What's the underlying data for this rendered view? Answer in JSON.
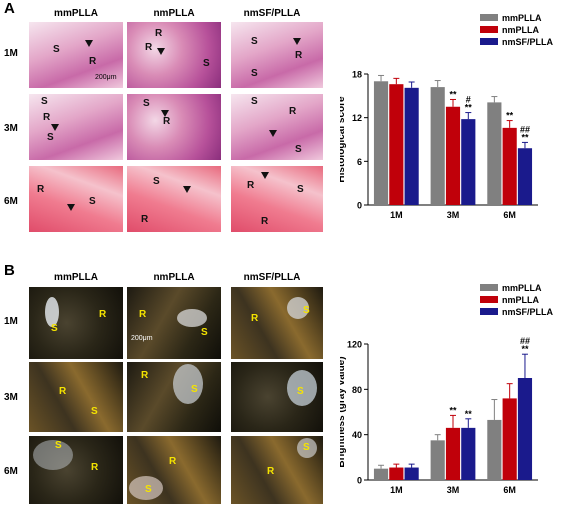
{
  "panels": {
    "a": {
      "letter": "A",
      "columns": [
        "mmPLLA",
        "nmPLLA",
        "nmSF/PLLA"
      ],
      "rows": [
        "1M",
        "3M",
        "6M"
      ],
      "scale_bar": "200μm"
    },
    "b": {
      "letter": "B",
      "columns": [
        "mmPLLA",
        "nmPLLA",
        "nmSF/PLLA"
      ],
      "rows": [
        "1M",
        "3M",
        "6M"
      ],
      "scale_bar": "200μm"
    }
  },
  "markers": {
    "s": "S",
    "r": "R"
  },
  "colors": {
    "mmPLLA": "#808080",
    "nmPLLA": "#c0000a",
    "nmSF/PLLA": "#1a1a8c"
  },
  "chart_data": [
    {
      "type": "bar",
      "categories": [
        "1M",
        "3M",
        "6M"
      ],
      "series": [
        {
          "name": "mmPLLA",
          "values": [
            17,
            16.2,
            14.1
          ],
          "errors": [
            0.8,
            0.9,
            0.8
          ]
        },
        {
          "name": "nmPLLA",
          "values": [
            16.6,
            13.5,
            10.6
          ],
          "errors": [
            0.8,
            1.0,
            1.0
          ]
        },
        {
          "name": "nmSF/PLLA",
          "values": [
            16.1,
            11.8,
            7.8
          ],
          "errors": [
            0.8,
            0.9,
            0.8
          ]
        }
      ],
      "ylabel": "Histological score",
      "ylim": [
        0,
        18
      ],
      "yticks": [
        0,
        6,
        12,
        18
      ],
      "legend": "top-right",
      "annotations": [
        {
          "category": "3M",
          "series": "nmPLLA",
          "text": "**"
        },
        {
          "category": "3M",
          "series": "nmSF/PLLA",
          "text": "#\n**"
        },
        {
          "category": "6M",
          "series": "nmPLLA",
          "text": "**"
        },
        {
          "category": "6M",
          "series": "nmSF/PLLA",
          "text": "##\n**"
        }
      ]
    },
    {
      "type": "bar",
      "categories": [
        "1M",
        "3M",
        "6M"
      ],
      "series": [
        {
          "name": "mmPLLA",
          "values": [
            10,
            35,
            53
          ],
          "errors": [
            3,
            5,
            18
          ]
        },
        {
          "name": "nmPLLA",
          "values": [
            11,
            46,
            72
          ],
          "errors": [
            3,
            11,
            13
          ]
        },
        {
          "name": "nmSF/PLLA",
          "values": [
            11,
            46,
            90
          ],
          "errors": [
            3,
            8,
            21
          ]
        }
      ],
      "ylabel": "Brightness (gray value)",
      "ylim": [
        0,
        120
      ],
      "yticks": [
        0,
        40,
        80,
        120
      ],
      "legend": "top-right",
      "annotations": [
        {
          "category": "3M",
          "series": "nmPLLA",
          "text": "**"
        },
        {
          "category": "3M",
          "series": "nmSF/PLLA",
          "text": "**"
        },
        {
          "category": "6M",
          "series": "nmSF/PLLA",
          "text": "##\n**"
        }
      ]
    }
  ]
}
